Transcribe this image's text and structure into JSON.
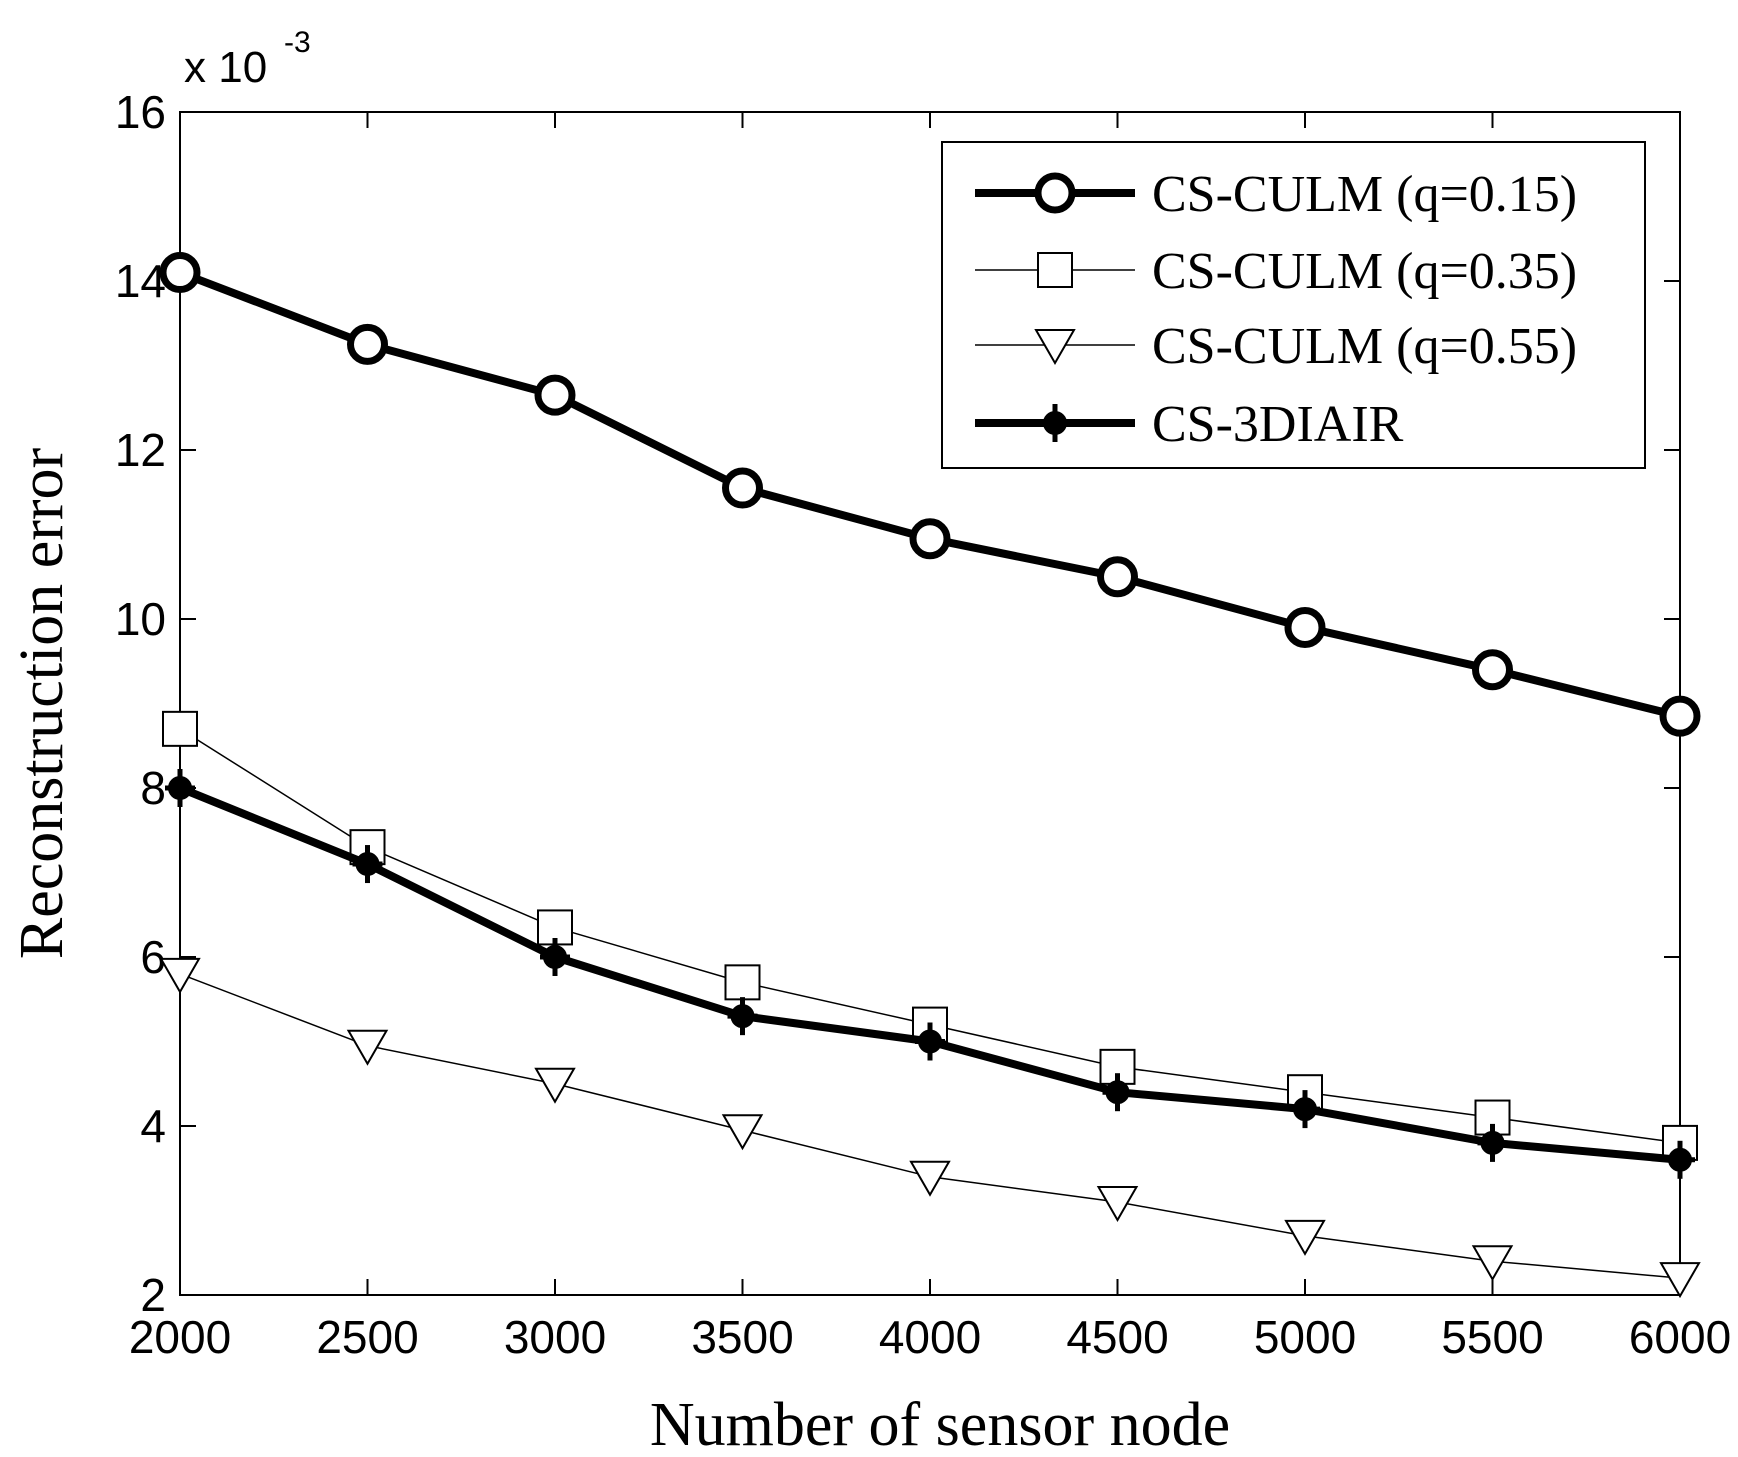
{
  "chart_data": {
    "type": "line",
    "title": "",
    "xlabel": "Number of sensor node",
    "ylabel": "Reconstruction error",
    "y_multiplier": "x 10",
    "y_multiplier_exponent": "-3",
    "x": [
      2000,
      2500,
      3000,
      3500,
      4000,
      4500,
      5000,
      5500,
      6000
    ],
    "xlim": [
      2000,
      6000
    ],
    "ylim": [
      2,
      16
    ],
    "xticks": [
      "2000",
      "2500",
      "3000",
      "3500",
      "4000",
      "4500",
      "5000",
      "5500",
      "6000"
    ],
    "yticks": [
      "2",
      "4",
      "6",
      "8",
      "10",
      "12",
      "14",
      "16"
    ],
    "ytick_values": [
      2,
      4,
      6,
      8,
      10,
      12,
      14,
      16
    ],
    "grid": false,
    "legend_position": "top-right",
    "series": [
      {
        "name": "CS-CULM (q=0.15)",
        "marker": "circle",
        "line_weight": "thick",
        "values": [
          14.1,
          13.25,
          12.65,
          11.55,
          10.95,
          10.5,
          9.9,
          9.4,
          8.85
        ]
      },
      {
        "name": "CS-CULM (q=0.35)",
        "marker": "square",
        "line_weight": "thin",
        "values": [
          8.7,
          7.3,
          6.35,
          5.7,
          5.2,
          4.7,
          4.4,
          4.1,
          3.8
        ]
      },
      {
        "name": "CS-CULM (q=0.55)",
        "marker": "triangle-down",
        "line_weight": "thin",
        "values": [
          5.8,
          4.95,
          4.5,
          3.95,
          3.4,
          3.1,
          2.7,
          2.4,
          2.2
        ]
      },
      {
        "name": "CS-3DIAIR",
        "marker": "plus-dot",
        "line_weight": "thick",
        "values": [
          8.0,
          7.1,
          6.0,
          5.3,
          5.0,
          4.4,
          4.2,
          3.8,
          3.6
        ]
      }
    ]
  }
}
